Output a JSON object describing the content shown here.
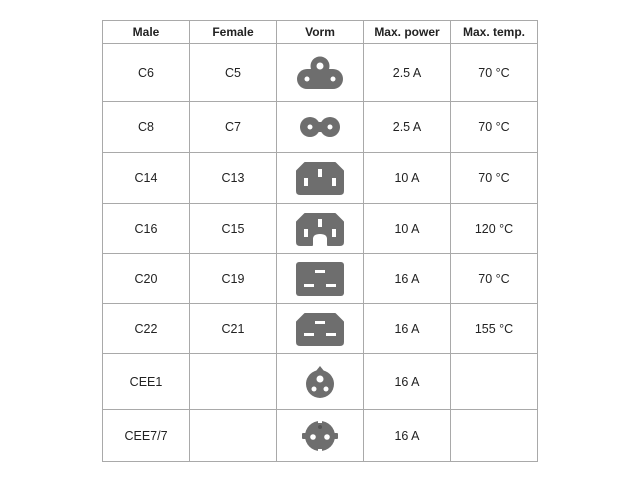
{
  "headers": {
    "male": "Male",
    "female": "Female",
    "vorm": "Vorm",
    "power": "Max. power",
    "temp": "Max. temp."
  },
  "icon_color": "#6e6e6e",
  "rows": [
    {
      "male": "C6",
      "female": "C5",
      "icon": "c5-cloverleaf-icon",
      "power": "2.5 A",
      "temp": "70 °C"
    },
    {
      "male": "C8",
      "female": "C7",
      "icon": "c7-figure-eight-icon",
      "power": "2.5 A",
      "temp": "70 °C"
    },
    {
      "male": "C14",
      "female": "C13",
      "icon": "c13-connector-icon",
      "power": "10 A",
      "temp": "70 °C"
    },
    {
      "male": "C16",
      "female": "C15",
      "icon": "c15-connector-icon",
      "power": "10 A",
      "temp": "120 °C"
    },
    {
      "male": "C20",
      "female": "C19",
      "icon": "c19-connector-icon",
      "power": "16 A",
      "temp": "70 °C"
    },
    {
      "male": "C22",
      "female": "C21",
      "icon": "c21-connector-icon",
      "power": "16 A",
      "temp": "155 °C"
    },
    {
      "male": "CEE1",
      "female": "",
      "icon": "cee1-plug-icon",
      "power": "16 A",
      "temp": ""
    },
    {
      "male": "CEE7/7",
      "female": "",
      "icon": "cee7-7-plug-icon",
      "power": "16 A",
      "temp": ""
    }
  ]
}
